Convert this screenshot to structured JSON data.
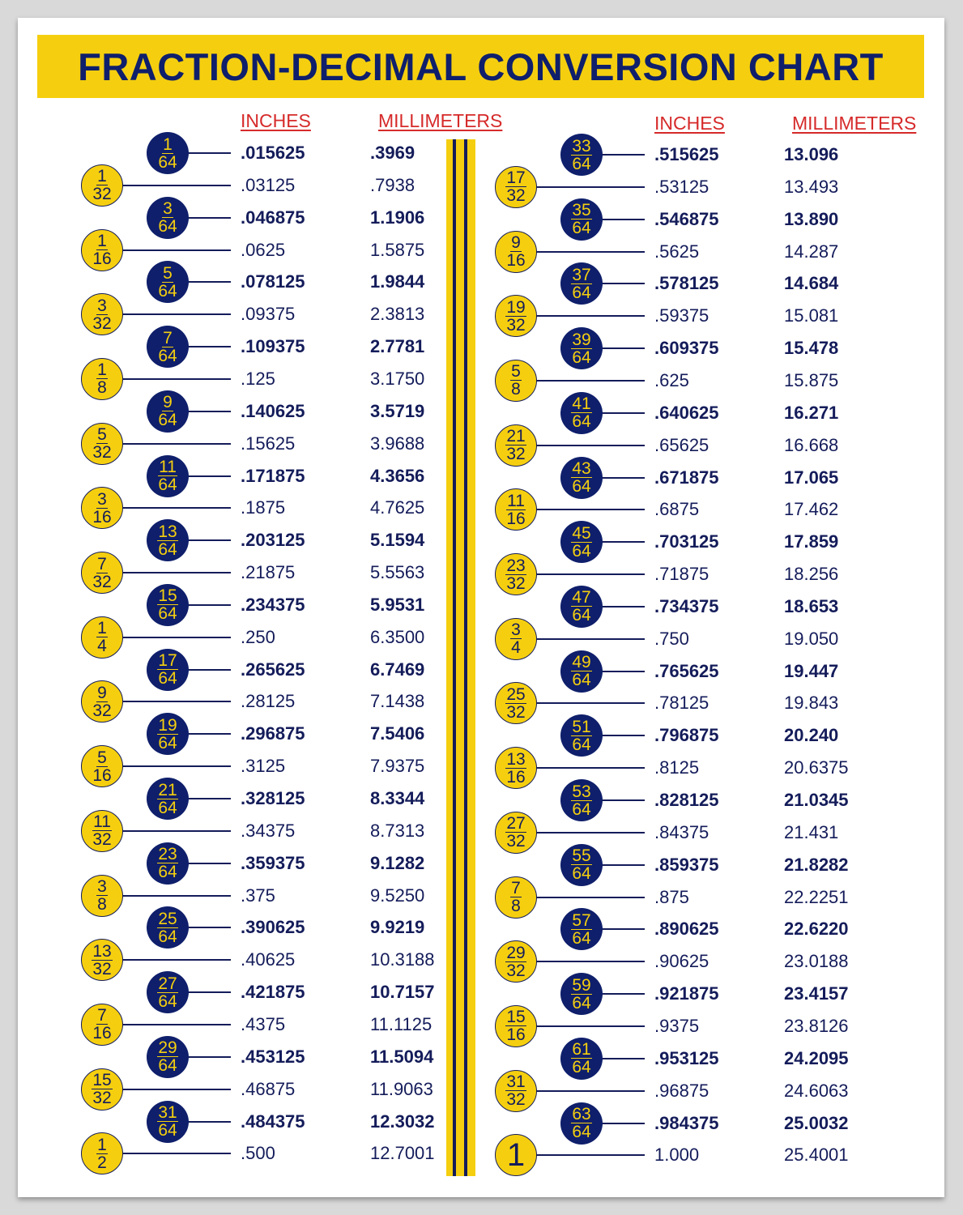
{
  "title": "FRACTION-DECIMAL CONVERSION CHART",
  "colors": {
    "navy": "#0f1f6b",
    "yellow": "#f5cf0f",
    "header_red": "#d62a2a"
  },
  "left": {
    "headers": {
      "inches": "INCHES",
      "millimeters": "MILLIMETERS"
    },
    "rows": [
      [
        "1",
        "64",
        ".015625",
        ".3969"
      ],
      [
        "1",
        "32",
        ".03125",
        ".7938"
      ],
      [
        "3",
        "64",
        ".046875",
        "1.1906"
      ],
      [
        "1",
        "16",
        ".0625",
        "1.5875"
      ],
      [
        "5",
        "64",
        ".078125",
        "1.9844"
      ],
      [
        "3",
        "32",
        ".09375",
        "2.3813"
      ],
      [
        "7",
        "64",
        ".109375",
        "2.7781"
      ],
      [
        "1",
        "8",
        ".125",
        "3.1750"
      ],
      [
        "9",
        "64",
        ".140625",
        "3.5719"
      ],
      [
        "5",
        "32",
        ".15625",
        "3.9688"
      ],
      [
        "11",
        "64",
        ".171875",
        "4.3656"
      ],
      [
        "3",
        "16",
        ".1875",
        "4.7625"
      ],
      [
        "13",
        "64",
        ".203125",
        "5.1594"
      ],
      [
        "7",
        "32",
        ".21875",
        "5.5563"
      ],
      [
        "15",
        "64",
        ".234375",
        "5.9531"
      ],
      [
        "1",
        "4",
        ".250",
        "6.3500"
      ],
      [
        "17",
        "64",
        ".265625",
        "6.7469"
      ],
      [
        "9",
        "32",
        ".28125",
        "7.1438"
      ],
      [
        "19",
        "64",
        ".296875",
        "7.5406"
      ],
      [
        "5",
        "16",
        ".3125",
        "7.9375"
      ],
      [
        "21",
        "64",
        ".328125",
        "8.3344"
      ],
      [
        "11",
        "32",
        ".34375",
        "8.7313"
      ],
      [
        "23",
        "64",
        ".359375",
        "9.1282"
      ],
      [
        "3",
        "8",
        ".375",
        "9.5250"
      ],
      [
        "25",
        "64",
        ".390625",
        "9.9219"
      ],
      [
        "13",
        "32",
        ".40625",
        "10.3188"
      ],
      [
        "27",
        "64",
        ".421875",
        "10.7157"
      ],
      [
        "7",
        "16",
        ".4375",
        "11.1125"
      ],
      [
        "29",
        "64",
        ".453125",
        "11.5094"
      ],
      [
        "15",
        "32",
        ".46875",
        "11.9063"
      ],
      [
        "31",
        "64",
        ".484375",
        "12.3032"
      ],
      [
        "1",
        "2",
        ".500",
        "12.7001"
      ]
    ]
  },
  "right": {
    "headers": {
      "inches": "INCHES",
      "millimeters": "MILLIMETERS"
    },
    "rows": [
      [
        "33",
        "64",
        ".515625",
        "13.096"
      ],
      [
        "17",
        "32",
        ".53125",
        "13.493"
      ],
      [
        "35",
        "64",
        ".546875",
        "13.890"
      ],
      [
        "9",
        "16",
        ".5625",
        "14.287"
      ],
      [
        "37",
        "64",
        ".578125",
        "14.684"
      ],
      [
        "19",
        "32",
        ".59375",
        "15.081"
      ],
      [
        "39",
        "64",
        ".609375",
        "15.478"
      ],
      [
        "5",
        "8",
        ".625",
        "15.875"
      ],
      [
        "41",
        "64",
        ".640625",
        "16.271"
      ],
      [
        "21",
        "32",
        ".65625",
        "16.668"
      ],
      [
        "43",
        "64",
        ".671875",
        "17.065"
      ],
      [
        "11",
        "16",
        ".6875",
        "17.462"
      ],
      [
        "45",
        "64",
        ".703125",
        "17.859"
      ],
      [
        "23",
        "32",
        ".71875",
        "18.256"
      ],
      [
        "47",
        "64",
        ".734375",
        "18.653"
      ],
      [
        "3",
        "4",
        ".750",
        "19.050"
      ],
      [
        "49",
        "64",
        ".765625",
        "19.447"
      ],
      [
        "25",
        "32",
        ".78125",
        "19.843"
      ],
      [
        "51",
        "64",
        ".796875",
        "20.240"
      ],
      [
        "13",
        "16",
        ".8125",
        "20.6375"
      ],
      [
        "53",
        "64",
        ".828125",
        "21.0345"
      ],
      [
        "27",
        "32",
        ".84375",
        "21.431"
      ],
      [
        "55",
        "64",
        ".859375",
        "21.8282"
      ],
      [
        "7",
        "8",
        ".875",
        "22.2251"
      ],
      [
        "57",
        "64",
        ".890625",
        "22.6220"
      ],
      [
        "29",
        "32",
        ".90625",
        "23.0188"
      ],
      [
        "59",
        "64",
        ".921875",
        "23.4157"
      ],
      [
        "15",
        "16",
        ".9375",
        "23.8126"
      ],
      [
        "61",
        "64",
        ".953125",
        "24.2095"
      ],
      [
        "31",
        "32",
        ".96875",
        "24.6063"
      ],
      [
        "63",
        "64",
        ".984375",
        "25.0032"
      ],
      [
        "1",
        "",
        "1.000",
        "25.4001"
      ]
    ]
  }
}
